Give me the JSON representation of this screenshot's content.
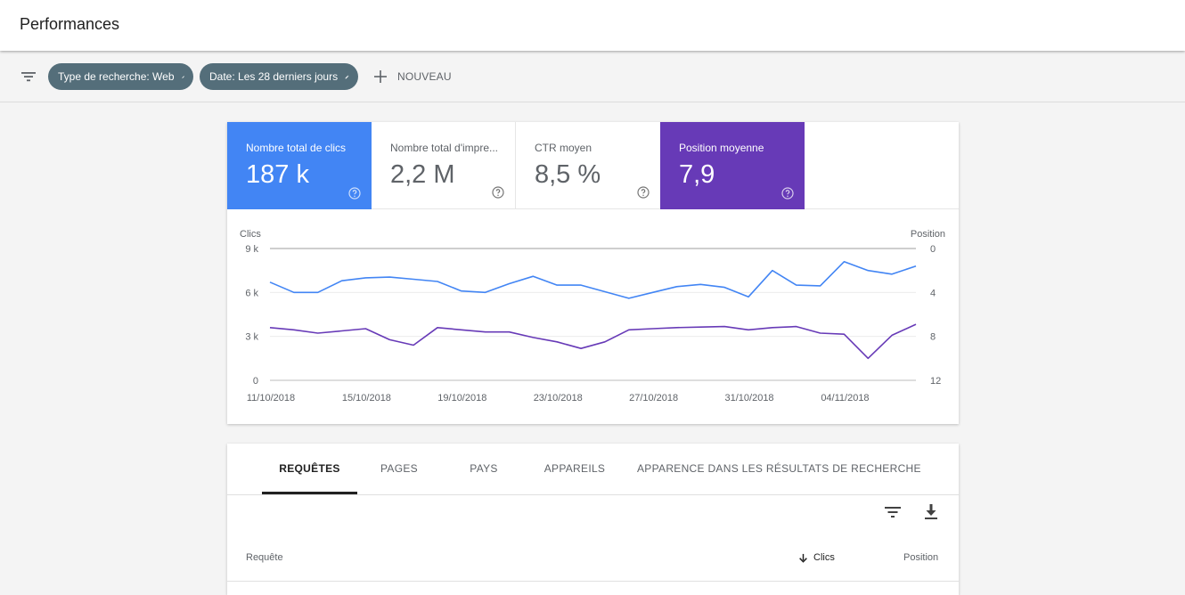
{
  "page": {
    "title": "Performances"
  },
  "filters": {
    "chips": [
      {
        "label": "Type de recherche: Web"
      },
      {
        "label": "Date: Les 28 derniers jours"
      }
    ],
    "new_label": "NOUVEAU"
  },
  "metrics": [
    {
      "label": "Nombre total de clics",
      "value": "187 k",
      "selected": true,
      "color": "#4285f4"
    },
    {
      "label": "Nombre total d'impre...",
      "value": "2,2 M",
      "selected": false
    },
    {
      "label": "CTR moyen",
      "value": "8,5 %",
      "selected": false
    },
    {
      "label": "Position moyenne",
      "value": "7,9",
      "selected": true,
      "color": "#673ab7"
    }
  ],
  "chart_data": {
    "type": "line",
    "x": [
      "11/10/2018",
      "12/10/2018",
      "13/10/2018",
      "14/10/2018",
      "15/10/2018",
      "16/10/2018",
      "17/10/2018",
      "18/10/2018",
      "19/10/2018",
      "20/10/2018",
      "21/10/2018",
      "22/10/2018",
      "23/10/2018",
      "24/10/2018",
      "25/10/2018",
      "26/10/2018",
      "27/10/2018",
      "28/10/2018",
      "29/10/2018",
      "30/10/2018",
      "31/10/2018",
      "01/11/2018",
      "02/11/2018",
      "03/11/2018",
      "04/11/2018",
      "05/11/2018",
      "06/11/2018",
      "07/11/2018"
    ],
    "x_tick_labels": [
      "11/10/2018",
      "15/10/2018",
      "19/10/2018",
      "23/10/2018",
      "27/10/2018",
      "31/10/2018",
      "04/11/2018"
    ],
    "series": [
      {
        "name": "Clics",
        "axis": "left",
        "color": "#4285f4",
        "values": [
          6700,
          6000,
          6000,
          6800,
          7000,
          7050,
          6900,
          6750,
          6100,
          6000,
          6600,
          7100,
          6500,
          6500,
          6050,
          5600,
          6000,
          6400,
          6550,
          6350,
          5700,
          7500,
          6500,
          6450,
          8100,
          7500,
          7250,
          7800
        ]
      },
      {
        "name": "Position",
        "axis": "right",
        "color": "#673ab7",
        "values": [
          7.2,
          7.4,
          7.7,
          7.5,
          7.3,
          8.3,
          8.8,
          7.2,
          7.4,
          7.6,
          7.6,
          8.1,
          8.5,
          9.1,
          8.5,
          7.4,
          7.3,
          7.2,
          7.15,
          7.1,
          7.4,
          7.2,
          7.1,
          7.7,
          7.8,
          10.0,
          7.9,
          6.9
        ]
      }
    ],
    "y_left": {
      "label": "Clics",
      "ticks": [
        "9 k",
        "6 k",
        "3 k",
        "0"
      ],
      "range": [
        0,
        9000
      ]
    },
    "y_right": {
      "label": "Position",
      "ticks": [
        "0",
        "4",
        "8",
        "12"
      ],
      "range": [
        0,
        12
      ],
      "inverted": true
    },
    "grid": true
  },
  "table": {
    "tabs": [
      {
        "label": "REQUÊTES",
        "active": true
      },
      {
        "label": "PAGES",
        "active": false
      },
      {
        "label": "PAYS",
        "active": false
      },
      {
        "label": "APPAREILS",
        "active": false
      },
      {
        "label": "APPARENCE DANS LES RÉSULTATS DE RECHERCHE",
        "active": false
      }
    ],
    "columns": {
      "query": "Requête",
      "clicks": "Clics",
      "position": "Position"
    },
    "sort": "clicks-desc"
  },
  "icons": [
    "filter-icon",
    "edit-icon",
    "add-icon",
    "help-icon",
    "download-icon",
    "arrow-down-icon"
  ]
}
